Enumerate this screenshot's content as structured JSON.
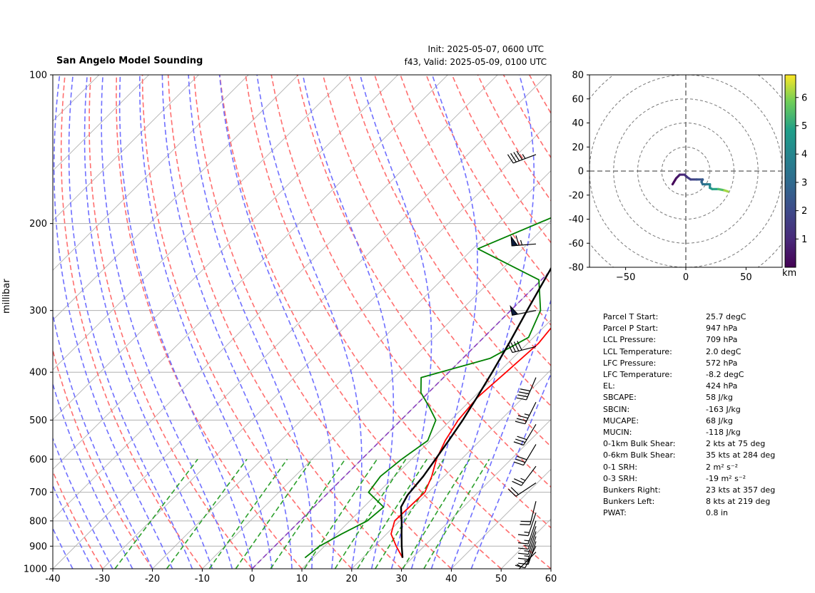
{
  "header": {
    "title": "San Angelo Model Sounding",
    "init": "Init: 2025-05-07, 0600 UTC",
    "valid": "f43, Valid: 2025-05-09, 0100 UTC"
  },
  "colors": {
    "temperature": "#ff0000",
    "dewpoint": "#008000",
    "parcel": "#000000",
    "dry_adiabat": "#ff6f6f",
    "moist_adiabat": "#7070ff",
    "mixing_ratio": "#2ca02c",
    "isotherm": "#b8b8b8",
    "isobar": "#b0b0b0",
    "zero_isotherm": "#8a3fbf"
  },
  "chart_data": [
    {
      "type": "line",
      "name": "skew-t",
      "ylabel": "millibar",
      "xlim": [
        -40,
        60
      ],
      "ylim": [
        1000,
        100
      ],
      "x_ticks": [
        -40,
        -30,
        -20,
        -10,
        0,
        10,
        20,
        30,
        40,
        50,
        60
      ],
      "y_ticks": [
        1000,
        900,
        800,
        700,
        600,
        500,
        400,
        300,
        200,
        100
      ],
      "y_scale": "log",
      "grid": true,
      "series": [
        {
          "role": "temperature",
          "x": [
            28.0,
            24.4,
            20.9,
            19.0,
            19.3,
            17.5,
            15.0,
            13.0,
            11.5,
            10.8,
            11.5,
            12.2,
            11.0,
            10.5,
            12.5,
            16.0,
            20.5,
            26.0,
            32.5,
            35.0
          ],
          "y": [
            950,
            900,
            850,
            800,
            700,
            650,
            600,
            550,
            500,
            450,
            400,
            350,
            300,
            250,
            225,
            200,
            175,
            150,
            120,
            110
          ]
        },
        {
          "role": "dewpoint",
          "x": [
            8.4,
            9.0,
            11.0,
            13.5,
            14.0,
            8.0,
            7.2,
            8.0,
            9.5,
            7.0,
            3.0,
            -1.5,
            -4.5,
            5.5,
            9.0,
            6.0,
            -0.5,
            -19.0,
            -7.5,
            -3.0,
            1.5,
            5.5,
            8.0
          ],
          "y": [
            950,
            900,
            850,
            800,
            750,
            700,
            650,
            600,
            550,
            500,
            470,
            440,
            410,
            375,
            340,
            300,
            260,
            225,
            185,
            160,
            140,
            120,
            110
          ]
        },
        {
          "role": "parcel",
          "x": [
            28.0,
            25.5,
            23.0,
            20.4,
            17.5,
            16.4,
            15.8,
            14.8,
            13.7,
            12.4,
            10.7,
            8.7,
            6.3,
            3.3,
            -0.1,
            -4.3,
            -9.2,
            -12.5,
            -13.6
          ],
          "y": [
            950,
            900,
            850,
            800,
            750,
            709,
            650,
            600,
            550,
            500,
            450,
            400,
            350,
            300,
            250,
            200,
            150,
            120,
            100
          ]
        }
      ]
    },
    {
      "type": "line",
      "name": "hodograph",
      "xlim": [
        -80,
        80
      ],
      "ylim": [
        -80,
        80
      ],
      "x_ticks": [
        -50,
        0,
        50
      ],
      "y_ticks": [
        80,
        60,
        40,
        20,
        0,
        -20,
        -40,
        -60,
        -80
      ],
      "colorbar_label": "km",
      "colorbar_ticks": [
        1,
        2,
        3,
        4,
        5,
        6
      ],
      "colorbar_range": [
        0,
        6.8
      ],
      "points": [
        {
          "u": -11,
          "v": -11,
          "z": 0.0
        },
        {
          "u": -8,
          "v": -6,
          "z": 0.3
        },
        {
          "u": -5,
          "v": -3,
          "z": 0.7
        },
        {
          "u": -1,
          "v": -3,
          "z": 1.0
        },
        {
          "u": 1,
          "v": -5,
          "z": 1.3
        },
        {
          "u": 4,
          "v": -7,
          "z": 1.6
        },
        {
          "u": 9,
          "v": -7,
          "z": 2.0
        },
        {
          "u": 14,
          "v": -7,
          "z": 2.4
        },
        {
          "u": 13,
          "v": -9,
          "z": 2.8
        },
        {
          "u": 14,
          "v": -11,
          "z": 3.1
        },
        {
          "u": 17,
          "v": -11,
          "z": 3.4
        },
        {
          "u": 20,
          "v": -11,
          "z": 3.7
        },
        {
          "u": 20,
          "v": -14,
          "z": 4.1
        },
        {
          "u": 22,
          "v": -15,
          "z": 4.6
        },
        {
          "u": 27,
          "v": -15,
          "z": 5.2
        },
        {
          "u": 32,
          "v": -16,
          "z": 5.8
        },
        {
          "u": 35,
          "v": -17,
          "z": 6.6
        }
      ]
    }
  ],
  "wind_barbs": [
    {
      "p": 925,
      "u": 5,
      "v": 5
    },
    {
      "p": 900,
      "u": 5,
      "v": 10
    },
    {
      "p": 880,
      "u": 5,
      "v": 15
    },
    {
      "p": 860,
      "u": 5,
      "v": 15
    },
    {
      "p": 840,
      "u": 5,
      "v": 15
    },
    {
      "p": 820,
      "u": 5,
      "v": 15
    },
    {
      "p": 800,
      "u": 5,
      "v": 15
    },
    {
      "p": 770,
      "u": 5,
      "v": 15
    },
    {
      "p": 730,
      "u": 5,
      "v": 20
    },
    {
      "p": 670,
      "u": 15,
      "v": 10
    },
    {
      "p": 620,
      "u": 15,
      "v": 20
    },
    {
      "p": 560,
      "u": 15,
      "v": 25
    },
    {
      "p": 510,
      "u": 15,
      "v": 25
    },
    {
      "p": 460,
      "u": 15,
      "v": 30
    },
    {
      "p": 410,
      "u": 15,
      "v": 35
    },
    {
      "p": 355,
      "u": 40,
      "v": 10
    },
    {
      "p": 300,
      "u": 50,
      "v": 10
    },
    {
      "p": 220,
      "u": 65,
      "v": 5
    },
    {
      "p": 145,
      "u": 40,
      "v": 15
    }
  ],
  "parameters": [
    {
      "label": "Parcel T Start:",
      "value": "25.7 degC"
    },
    {
      "label": "Parcel P Start:",
      "value": "947 hPa"
    },
    {
      "label": "LCL Pressure:",
      "value": "709 hPa"
    },
    {
      "label": "LCL Temperature:",
      "value": "2.0 degC"
    },
    {
      "label": "LFC Pressure:",
      "value": "572 hPa"
    },
    {
      "label": "LFC Temperature:",
      "value": "-8.2 degC"
    },
    {
      "label": "EL:",
      "value": "424 hPa"
    },
    {
      "label": "SBCAPE:",
      "value": "58 J/kg"
    },
    {
      "label": "SBCIN:",
      "value": "-163 J/kg"
    },
    {
      "label": "MUCAPE:",
      "value": "68 J/kg"
    },
    {
      "label": "MUCIN:",
      "value": "-118 J/kg"
    },
    {
      "label": "0-1km Bulk Shear:",
      "value": "2 kts at 75 deg"
    },
    {
      "label": "0-6km Bulk Shear:",
      "value": "35 kts at 284 deg"
    },
    {
      "label": "0-1 SRH:",
      "value": "2 m² s⁻²"
    },
    {
      "label": "0-3 SRH:",
      "value": "-19 m² s⁻²"
    },
    {
      "label": "Bunkers Right:",
      "value": "23 kts at 357 deg"
    },
    {
      "label": "Bunkers Left:",
      "value": "8 kts at 219 deg"
    },
    {
      "label": "PWAT:",
      "value": "0.8 in"
    }
  ]
}
